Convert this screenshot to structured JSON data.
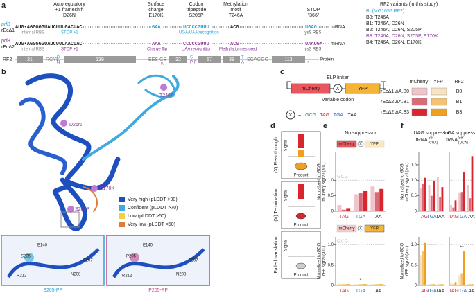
{
  "panel_labels": [
    "a",
    "b",
    "c",
    "d",
    "e",
    "f"
  ],
  "panel_a": {
    "headers": [
      [
        "Autoregulatory",
        "+1 frameshift",
        "D26N"
      ],
      [
        "Surface",
        "charge",
        "E170K"
      ],
      [
        "Codon",
        "tripeptide",
        "S205P"
      ],
      [
        "Methylation",
        "motif",
        "T246A"
      ],
      [
        "STOP",
        "\"366\""
      ]
    ],
    "rows": [
      {
        "gene": "prfB",
        "strain": "rEcΔ1",
        "seq": [
          "AUG•AGGGGGUAUCUUUGACUAC",
          "GAA",
          "UCCCCGUUU",
          "ACG",
          "UGAG"
        ],
        "notes": [
          "Internal RBS",
          "STOP +1",
          "UGA/UAA recognition",
          "lysS RBS"
        ]
      },
      {
        "gene": "prfB",
        "strain": "rEcΔ2",
        "seq": [
          "AUG•AGGGGGUAUCUUUAACUAC",
          "AAA",
          "CCUCCGUUU",
          "ACG",
          "UAAUGA"
        ],
        "notes": [
          "Internal RBS",
          "STOP +1",
          "Charge flip",
          "UAA recognition",
          "Methylation restored",
          "lysS RBS"
        ]
      }
    ],
    "mrna": "mRNA",
    "rf2": {
      "label": "RF2",
      "segments": [
        "21",
        "139",
        "32",
        "57",
        "38",
        "113"
      ],
      "residues": [
        "RGYL",
        "D",
        "N",
        "EES GE",
        "K",
        "S",
        "P",
        "F",
        "T",
        "A",
        "SGAGGG",
        "*"
      ],
      "protein": "Protein"
    },
    "variants": {
      "title": "RF2 variants (in this study)",
      "items": [
        "B:  (MG1655 RF2)",
        "B0: T246A",
        "B1: T246A, D26N",
        "B2: T246A, D26N, S205P",
        "B3: T246A, D26N, S205P, E170K",
        "B4: T246A, D26N, E170K"
      ]
    }
  },
  "panel_b": {
    "labels": [
      "T246A",
      "D26N",
      "E170K",
      "S205P"
    ],
    "legend": [
      {
        "label": "Very high (pLDDT >90)",
        "color": "#1d4fbf"
      },
      {
        "label": "Confident (pLDDT >70)",
        "color": "#3fa9e0"
      },
      {
        "label": "Low (pLDDT >50)",
        "color": "#f2d046"
      },
      {
        "label": "Very low (pLDDT <50)",
        "color": "#e07b39"
      }
    ],
    "insets": [
      {
        "title": "S205-PF",
        "residues": [
          "E140",
          "S205",
          "F207",
          "R212",
          "N208"
        ]
      },
      {
        "title": "P205-PF",
        "residues": [
          "E140",
          "P205",
          "F207",
          "R212",
          "N208"
        ]
      }
    ]
  },
  "panel_c": {
    "linker": "ELP linker",
    "genes": [
      "mCherry",
      "YFP"
    ],
    "codon": "Variable codon",
    "x": "X",
    "eq": "=",
    "codons": [
      {
        "text": "GCG",
        "color": "#2e9e3e"
      },
      {
        "text": "TAG",
        "color": "#d9262e"
      },
      {
        "text": "TGA",
        "color": "#2b6cc4"
      },
      {
        "text": "TAA",
        "color": "#222222"
      }
    ],
    "legend": {
      "headers": [
        "mCherry",
        "YFP",
        "RF2"
      ],
      "rows": [
        {
          "strain": "rEcΔ1.ΔA.B0",
          "colors": [
            "#f0c4c8",
            "#f7e3c0"
          ],
          "rf2": "B0"
        },
        {
          "strain": "rEcΔ2.ΔA.B1",
          "colors": [
            "#d96a78",
            "#f3c273"
          ],
          "rf2": "B1"
        },
        {
          "strain": "rEcΔ2.ΔA.B3",
          "colors": [
            "#d9262e",
            "#f0a020"
          ],
          "rf2": "B3"
        }
      ]
    }
  },
  "panel_d": {
    "rows": [
      "(X) Readthrough",
      "(X) Termination",
      "Failed translation"
    ],
    "signal": "Signal",
    "product": "Product"
  },
  "chart_data": [
    {
      "type": "bar",
      "title": "No suppressor",
      "ylabel": [
        "Normalized to GCG",
        "mCherry signal (a.u.)"
      ],
      "categories": [
        "TAG",
        "TGA",
        "TAA"
      ],
      "category_colors": [
        "#d9262e",
        "#2b6cc4",
        "#222222"
      ],
      "series": [
        {
          "color": "#f0c4c8",
          "values": [
            0.2,
            0.55,
            0.8
          ]
        },
        {
          "color": "#d96a78",
          "values": [
            0.05,
            0.58,
            0.62
          ]
        },
        {
          "color": "#d9262e",
          "values": [
            0.08,
            0.65,
            0.72
          ]
        }
      ],
      "ylim": [
        0,
        1.9
      ],
      "yticks": [
        0,
        0.5,
        {
          "value": 1,
          "label": "1.0"
        }
      ],
      "reference": {
        "value": 1,
        "label": "GCG"
      }
    },
    {
      "type": "bar",
      "ylabel": [
        "Normalized to GCG",
        "YFP signal (a.u.)"
      ],
      "categories": [
        "TAG",
        "TGA",
        "TAA"
      ],
      "category_colors": [
        "#d9262e",
        "#2b6cc4",
        "#222222"
      ],
      "series": [
        {
          "color": "#f7e3c0",
          "values": [
            0.04,
            0.03,
            0.03
          ]
        },
        {
          "color": "#f3c273",
          "values": [
            0.03,
            0.03,
            0.03
          ]
        },
        {
          "color": "#f0a020",
          "values": [
            0.03,
            0.03,
            0.03
          ]
        }
      ],
      "ylim": [
        0,
        1.2
      ],
      "yticks": [
        0,
        0.5,
        {
          "value": 1,
          "label": "1.0"
        }
      ],
      "reference": {
        "value": 1,
        "label": "GCG"
      },
      "annotations": [
        null,
        "*",
        null
      ]
    },
    {
      "type": "bar",
      "title": "UAG suppressor",
      "subtitle": "tRNA",
      "sup": "Ser",
      "sub": "(CUA)",
      "ylabel": [
        "Normalized to GCG",
        "mCherry signal (a.u.)"
      ],
      "categories": [
        "TAG",
        "TGA",
        "TAA"
      ],
      "category_colors": [
        "#d9262e",
        "#2b6cc4",
        "#222222"
      ],
      "series": [
        {
          "color": "#f0c4c8",
          "values": [
            0.75,
            0.85,
            1.1
          ]
        },
        {
          "color": "#d96a78",
          "values": [
            0.88,
            0.5,
            0.45
          ]
        },
        {
          "color": "#d9262e",
          "values": [
            1.08,
            0.98,
            0.78
          ]
        }
      ],
      "ylim": [
        0,
        1.9
      ],
      "yticks": [
        0,
        0.5,
        {
          "value": 1,
          "label": "1.0"
        },
        1.5
      ],
      "reference": {
        "value": 1
      }
    },
    {
      "type": "bar",
      "title": "UGA suppressor",
      "subtitle": "tRNA",
      "sup": "Ser",
      "sub": "(UCA)",
      "categories": [
        "TAG",
        "TGA",
        "TAA"
      ],
      "category_colors": [
        "#d9262e",
        "#2b6cc4",
        "#222222"
      ],
      "series": [
        {
          "color": "#f0c4c8",
          "values": [
            0.2,
            0.6,
            0.85
          ]
        },
        {
          "color": "#d96a78",
          "values": [
            0.12,
            0.62,
            0.42
          ]
        },
        {
          "color": "#d9262e",
          "values": [
            0.35,
            1.25,
            1.78
          ]
        }
      ],
      "ylim": [
        0,
        1.9
      ],
      "reference": {
        "value": 1
      }
    },
    {
      "type": "bar",
      "ylabel": [
        "Normalized to GCG",
        "YFP signal (a.u.)"
      ],
      "categories": [
        "TAG",
        "TGA",
        "TAA"
      ],
      "category_colors": [
        "#d9262e",
        "#2b6cc4",
        "#222222"
      ],
      "series": [
        {
          "color": "#f7e3c0",
          "values": [
            0.75,
            0.03,
            0.03
          ]
        },
        {
          "color": "#f3c273",
          "values": [
            0.85,
            0.03,
            0.03
          ]
        },
        {
          "color": "#f0a020",
          "values": [
            1.05,
            0.03,
            0.03
          ]
        }
      ],
      "ylim": [
        0,
        1.2
      ],
      "yticks": [
        0,
        0.5,
        {
          "value": 1,
          "label": "1.0"
        }
      ],
      "reference": {
        "value": 1
      }
    },
    {
      "type": "bar",
      "categories": [
        "TAG",
        "TGA",
        "TAA"
      ],
      "category_colors": [
        "#d9262e",
        "#2b6cc4",
        "#222222"
      ],
      "series": [
        {
          "color": "#f7e3c0",
          "values": [
            0.05,
            0.25,
            0.03
          ]
        },
        {
          "color": "#f3c273",
          "values": [
            0.03,
            0.3,
            0.03
          ]
        },
        {
          "color": "#f0a020",
          "values": [
            0.08,
            0.85,
            0.03
          ]
        }
      ],
      "ylim": [
        0,
        1.2
      ],
      "reference": {
        "value": 1
      },
      "annotations": [
        null,
        "**",
        null
      ]
    }
  ]
}
